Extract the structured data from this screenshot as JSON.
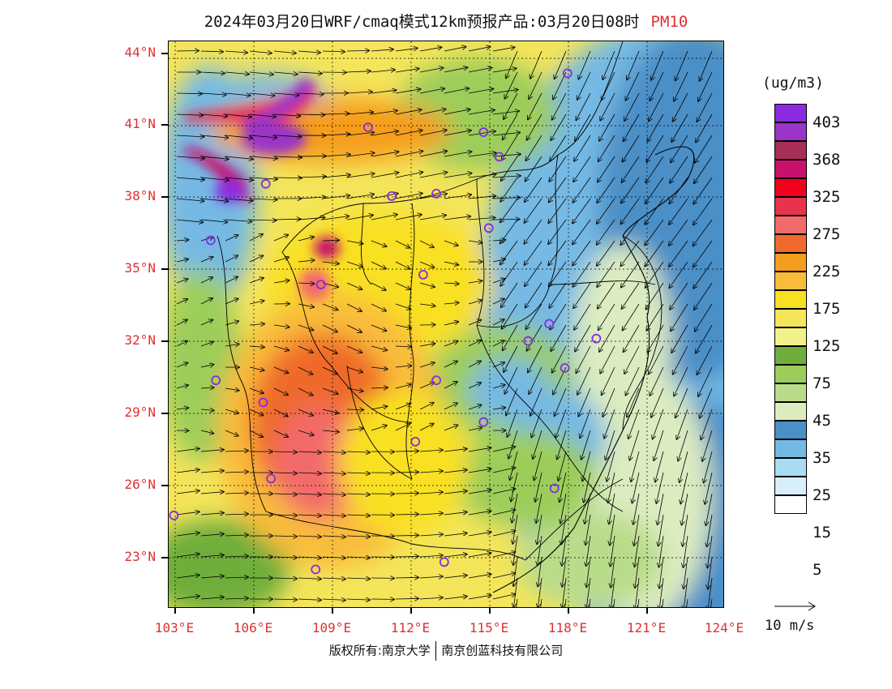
{
  "title": {
    "text": "2024年03月20日WRF/cmaq模式12km预报产品:03月20日08时",
    "pollutant": "PM10"
  },
  "map": {
    "lon_range": [
      102.8,
      124.0
    ],
    "lat_range": [
      21.2,
      44.3
    ],
    "lat_labels": [
      {
        "value": 44,
        "text": "44°N"
      },
      {
        "value": 41,
        "text": "41°N"
      },
      {
        "value": 38,
        "text": "38°N"
      },
      {
        "value": 35,
        "text": "35°N"
      },
      {
        "value": 32,
        "text": "32°N"
      },
      {
        "value": 29,
        "text": "29°N"
      },
      {
        "value": 26,
        "text": "26°N"
      },
      {
        "value": 23,
        "text": "23°N"
      }
    ],
    "lon_labels": [
      {
        "value": 103,
        "text": "103°E"
      },
      {
        "value": 106,
        "text": "106°E"
      },
      {
        "value": 109,
        "text": "109°E"
      },
      {
        "value": 112,
        "text": "112°E"
      },
      {
        "value": 115,
        "text": "115°E"
      },
      {
        "value": 118,
        "text": "118°E"
      },
      {
        "value": 121,
        "text": "121°E"
      },
      {
        "value": 124,
        "text": "124°E"
      }
    ],
    "stations": [
      [
        118.0,
        43.0
      ],
      [
        110.4,
        40.8
      ],
      [
        114.8,
        40.6
      ],
      [
        115.4,
        39.6
      ],
      [
        106.5,
        38.5
      ],
      [
        111.3,
        38.0
      ],
      [
        113.0,
        38.1
      ],
      [
        104.4,
        36.2
      ],
      [
        115.0,
        36.7
      ],
      [
        112.5,
        34.8
      ],
      [
        108.6,
        34.4
      ],
      [
        116.5,
        32.1
      ],
      [
        117.3,
        32.8
      ],
      [
        119.1,
        32.2
      ],
      [
        117.9,
        31.0
      ],
      [
        104.6,
        30.5
      ],
      [
        113.0,
        30.5
      ],
      [
        106.4,
        29.6
      ],
      [
        114.8,
        28.8
      ],
      [
        112.2,
        28.0
      ],
      [
        106.7,
        26.5
      ],
      [
        117.5,
        26.1
      ],
      [
        103.0,
        25.0
      ],
      [
        108.4,
        22.8
      ],
      [
        113.3,
        23.1
      ]
    ]
  },
  "colorbar": {
    "unit": "(ug/m3)",
    "colors": [
      "#ffffff",
      "#d8eefa",
      "#a8dcf3",
      "#74b9e4",
      "#4b8fc7",
      "#dcecc0",
      "#b9dc8a",
      "#9ccd5a",
      "#6fae3a",
      "#f2f28a",
      "#f4e55a",
      "#f9e020",
      "#f9bc3a",
      "#f59e1e",
      "#ef6a2c",
      "#f36a6a",
      "#e8334f",
      "#f2001c",
      "#c8106c",
      "#a52f58",
      "#9a35c8",
      "#8a2be2"
    ],
    "labels": [
      "5",
      "15",
      "25",
      "35",
      "45",
      "75",
      "125",
      "175",
      "225",
      "275",
      "325",
      "368",
      "403"
    ]
  },
  "wind_legend": {
    "label": "10 m/s"
  },
  "copyright": {
    "left": "版权所有:南京大学",
    "right": "南京创蓝科技有限公司"
  }
}
